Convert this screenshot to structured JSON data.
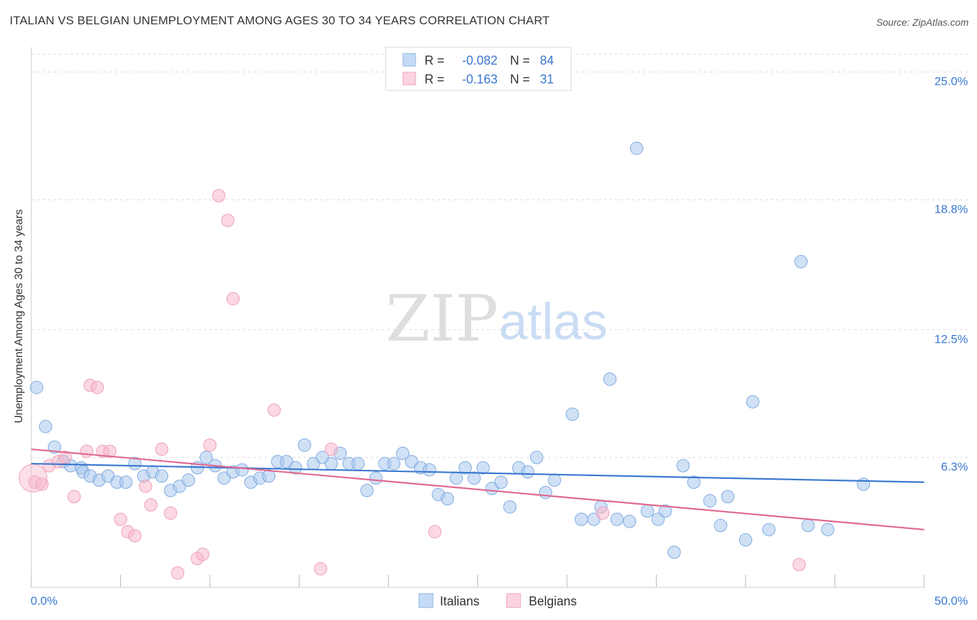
{
  "header": {
    "title": "ITALIAN VS BELGIAN UNEMPLOYMENT AMONG AGES 30 TO 34 YEARS CORRELATION CHART",
    "source": "Source: ZipAtlas.com"
  },
  "watermark": {
    "zip": "ZIP",
    "atlas": "atlas"
  },
  "stats_legend": {
    "rows": [
      {
        "r_label": "R =",
        "r_value": "-0.082",
        "n_label": "N =",
        "n_value": "84"
      },
      {
        "r_label": "R =",
        "r_value": "-0.163",
        "n_label": "N =",
        "n_value": "31"
      }
    ]
  },
  "chart_data": {
    "type": "scatter",
    "xlabel": "",
    "ylabel": "Unemployment Among Ages 30 to 34 years",
    "xlim": [
      0,
      50
    ],
    "ylim": [
      0,
      26.2
    ],
    "x_tick_labels": [
      "0.0%",
      "50.0%"
    ],
    "y_ticks": [
      6.3,
      12.5,
      18.8,
      25.0
    ],
    "y_tick_labels": [
      "6.3%",
      "12.5%",
      "18.8%",
      "25.0%"
    ],
    "grid": true,
    "legend_position": "bottom-center",
    "colors": {
      "italians": "#a9c8ef",
      "italians_line": "#3a78d0",
      "belgians": "#f7b8cb",
      "belgians_line": "#e0688f",
      "accent_text": "#3a78d0"
    },
    "series": [
      {
        "name": "Italians",
        "trend": {
          "x": [
            0,
            50
          ],
          "y": [
            6.0,
            5.1
          ]
        },
        "points": [
          [
            0.3,
            9.7
          ],
          [
            0.8,
            7.8
          ],
          [
            1.3,
            6.8
          ],
          [
            1.8,
            6.1
          ],
          [
            2.2,
            5.9
          ],
          [
            2.8,
            5.8
          ],
          [
            2.9,
            5.6
          ],
          [
            3.3,
            5.4
          ],
          [
            3.8,
            5.2
          ],
          [
            4.3,
            5.4
          ],
          [
            4.8,
            5.1
          ],
          [
            5.3,
            5.1
          ],
          [
            5.8,
            6.0
          ],
          [
            6.3,
            5.4
          ],
          [
            6.8,
            5.6
          ],
          [
            7.3,
            5.4
          ],
          [
            7.8,
            4.7
          ],
          [
            8.3,
            4.9
          ],
          [
            8.8,
            5.2
          ],
          [
            9.3,
            5.8
          ],
          [
            9.8,
            6.3
          ],
          [
            10.3,
            5.9
          ],
          [
            10.8,
            5.3
          ],
          [
            11.3,
            5.6
          ],
          [
            11.8,
            5.7
          ],
          [
            12.3,
            5.1
          ],
          [
            12.8,
            5.3
          ],
          [
            13.3,
            5.4
          ],
          [
            13.8,
            6.1
          ],
          [
            14.3,
            6.1
          ],
          [
            14.8,
            5.8
          ],
          [
            15.3,
            6.9
          ],
          [
            15.8,
            6.0
          ],
          [
            16.3,
            6.3
          ],
          [
            16.8,
            6.0
          ],
          [
            17.3,
            6.5
          ],
          [
            17.8,
            6.0
          ],
          [
            18.3,
            6.0
          ],
          [
            18.8,
            4.7
          ],
          [
            19.3,
            5.3
          ],
          [
            19.8,
            6.0
          ],
          [
            20.3,
            6.0
          ],
          [
            20.8,
            6.5
          ],
          [
            21.3,
            6.1
          ],
          [
            21.8,
            5.8
          ],
          [
            22.3,
            5.7
          ],
          [
            22.8,
            4.5
          ],
          [
            23.3,
            4.3
          ],
          [
            23.8,
            5.3
          ],
          [
            24.3,
            5.8
          ],
          [
            24.8,
            5.3
          ],
          [
            25.3,
            5.8
          ],
          [
            25.8,
            4.8
          ],
          [
            26.3,
            5.1
          ],
          [
            26.8,
            3.9
          ],
          [
            27.3,
            5.8
          ],
          [
            27.8,
            5.6
          ],
          [
            28.3,
            6.3
          ],
          [
            28.8,
            4.6
          ],
          [
            29.3,
            5.2
          ],
          [
            30.3,
            8.4
          ],
          [
            30.8,
            3.3
          ],
          [
            31.5,
            3.3
          ],
          [
            31.9,
            3.9
          ],
          [
            32.4,
            10.1
          ],
          [
            32.8,
            3.3
          ],
          [
            33.5,
            3.2
          ],
          [
            33.9,
            21.3
          ],
          [
            34.5,
            3.7
          ],
          [
            35.1,
            3.3
          ],
          [
            35.5,
            3.7
          ],
          [
            36.0,
            1.7
          ],
          [
            36.5,
            5.9
          ],
          [
            37.1,
            5.1
          ],
          [
            38.0,
            4.2
          ],
          [
            38.6,
            3.0
          ],
          [
            39.0,
            4.4
          ],
          [
            40.0,
            2.3
          ],
          [
            40.4,
            9.0
          ],
          [
            41.3,
            2.8
          ],
          [
            43.1,
            15.8
          ],
          [
            43.5,
            3.0
          ],
          [
            44.6,
            2.8
          ],
          [
            46.6,
            5.0
          ]
        ]
      },
      {
        "name": "Belgians",
        "trend": {
          "x": [
            0,
            50
          ],
          "y": [
            6.7,
            2.8
          ]
        },
        "points": [
          [
            0.2,
            5.1
          ],
          [
            0.6,
            5.0
          ],
          [
            1.0,
            5.9
          ],
          [
            1.5,
            6.1
          ],
          [
            1.9,
            6.3
          ],
          [
            2.4,
            4.4
          ],
          [
            3.1,
            6.6
          ],
          [
            3.3,
            9.8
          ],
          [
            3.7,
            9.7
          ],
          [
            4.0,
            6.6
          ],
          [
            4.4,
            6.6
          ],
          [
            5.0,
            3.3
          ],
          [
            5.4,
            2.7
          ],
          [
            5.8,
            2.5
          ],
          [
            6.4,
            4.9
          ],
          [
            6.7,
            4.0
          ],
          [
            7.3,
            6.7
          ],
          [
            7.8,
            3.6
          ],
          [
            8.2,
            0.7
          ],
          [
            9.3,
            1.4
          ],
          [
            9.6,
            1.6
          ],
          [
            10.0,
            6.9
          ],
          [
            10.5,
            19.0
          ],
          [
            11.0,
            17.8
          ],
          [
            11.3,
            14.0
          ],
          [
            13.6,
            8.6
          ],
          [
            16.2,
            0.9
          ],
          [
            16.8,
            6.7
          ],
          [
            22.6,
            2.7
          ],
          [
            32.0,
            3.6
          ],
          [
            43.0,
            1.1
          ]
        ]
      }
    ]
  }
}
